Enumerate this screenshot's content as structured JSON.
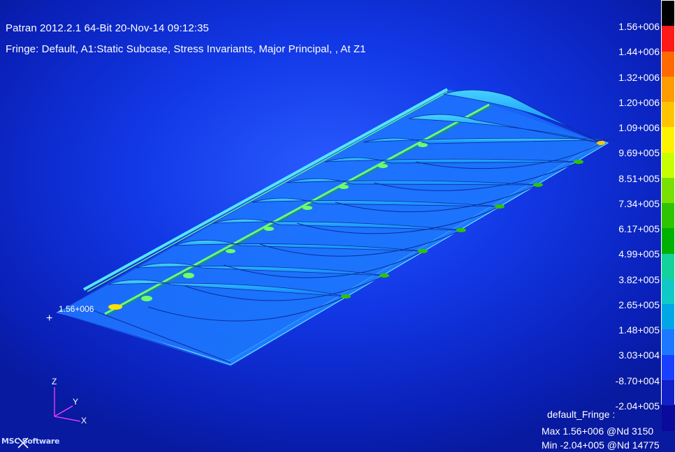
{
  "header": {
    "title_line": "Patran 2012.2.1 64-Bit 20-Nov-14 09:12:35",
    "fringe_line": "Fringe: Default, A1:Static Subcase, Stress Invariants, Major Principal, , At Z1"
  },
  "legend": {
    "labels": [
      "1.56+006",
      "1.44+006",
      "1.32+006",
      "1.20+006",
      "1.09+006",
      "9.69+005",
      "8.51+005",
      "7.34+005",
      "6.17+005",
      "4.99+005",
      "3.82+005",
      "2.65+005",
      "1.48+005",
      "3.03+004",
      "-8.70+004",
      "-2.04+005"
    ],
    "colors": [
      "#000000",
      "#ff1a1a",
      "#ff6a00",
      "#ff9c00",
      "#ffc400",
      "#fff200",
      "#c8ff00",
      "#79e000",
      "#2fc400",
      "#00b200",
      "#13d39a",
      "#10c8c8",
      "#00a6e6",
      "#1e78ff",
      "#1a40ff",
      "#1220c8",
      "#0a0a9c"
    ]
  },
  "footer": {
    "title": "default_Fringe :",
    "max": "Max 1.56+006 @Nd 3150",
    "min": "Min -2.04+005 @Nd 14775"
  },
  "marker": {
    "label": "1.56+006",
    "plus": "+"
  },
  "triad": {
    "z": "Z",
    "y": "Y",
    "x": "X"
  },
  "brand": "MSC Software"
}
